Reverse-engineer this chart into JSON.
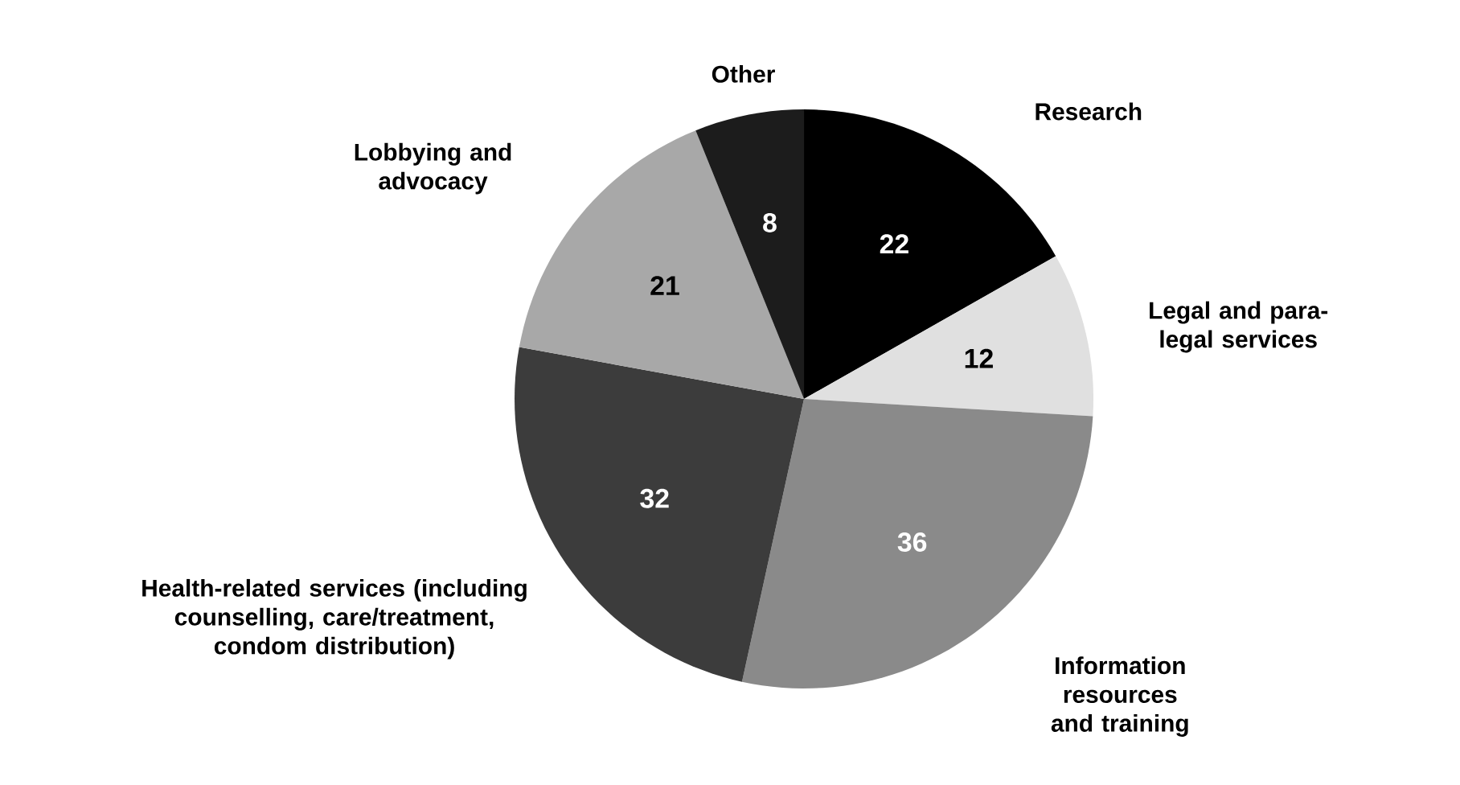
{
  "chart_data": {
    "type": "pie",
    "categories": [
      "Research",
      "Legal and para-legal services",
      "Information resources and training",
      "Health-related services (including counselling, care/treatment, condom distribution)",
      "Lobbying and advocacy",
      "Other"
    ],
    "values": [
      22,
      12,
      36,
      32,
      21,
      8
    ],
    "colors": [
      "#000000",
      "#e0e0e0",
      "#8a8a8a",
      "#3c3c3c",
      "#a8a8a8",
      "#1c1c1c"
    ],
    "data_labels": true
  }
}
